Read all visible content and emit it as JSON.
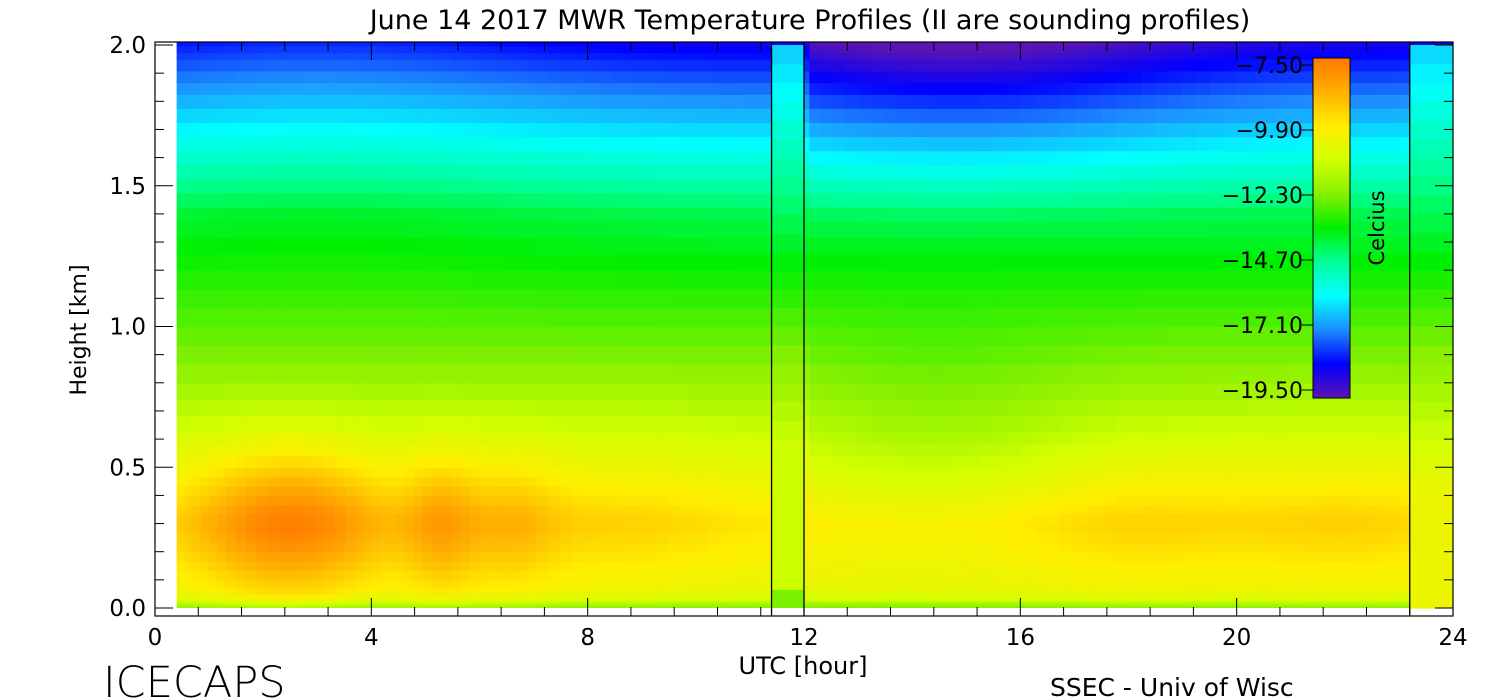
{
  "chart_data": {
    "type": "heatmap",
    "title": "June 14 2017 MWR Temperature Profiles (II are sounding profiles)",
    "xlabel": "UTC [hour]",
    "ylabel": "Height [km]",
    "xlim": [
      0,
      24
    ],
    "ylim": [
      0.0,
      2.0
    ],
    "xticks": [
      "0",
      "4",
      "8",
      "12",
      "16",
      "20",
      "24"
    ],
    "yticks": [
      "0.0",
      "0.5",
      "1.0",
      "1.5",
      "2.0"
    ],
    "x_hours": [
      0.4,
      1.0,
      1.6,
      2.5,
      3.4,
      4.0,
      4.6,
      5.3,
      6.0,
      6.7,
      7.4,
      8.5,
      9.5,
      10.5,
      11.4,
      12.0,
      13.0,
      14.0,
      14.5,
      15.5,
      16.5,
      17.5,
      18.5,
      19.5,
      20.5,
      21.5,
      22.5,
      23.2,
      24.0
    ],
    "heights_km": [
      0.0,
      0.05,
      0.15,
      0.25,
      0.35,
      0.45,
      0.55,
      0.7,
      0.9,
      1.1,
      1.3,
      1.45,
      1.6,
      1.75,
      1.9,
      2.0
    ],
    "gaps_hours": [
      [
        11.4,
        12.0
      ]
    ],
    "sounding_profiles_hours": [
      11.4,
      12.0,
      23.2
    ],
    "colorbar": {
      "label": "Celcius",
      "min": -19.5,
      "max": -7.5,
      "ticks": [
        "-7.50",
        "-9.90",
        "-12.30",
        "-14.70",
        "-17.10",
        "-19.50"
      ],
      "colors": [
        "#5a14b4",
        "#0000ff",
        "#1e8cff",
        "#00ffff",
        "#00ff9a",
        "#00f000",
        "#86f000",
        "#d2ff00",
        "#ffee00",
        "#ffb000",
        "#ff7800"
      ]
    },
    "footer_left": "ICECAPS",
    "footer_right": "SSEC - Univ of Wisc"
  }
}
